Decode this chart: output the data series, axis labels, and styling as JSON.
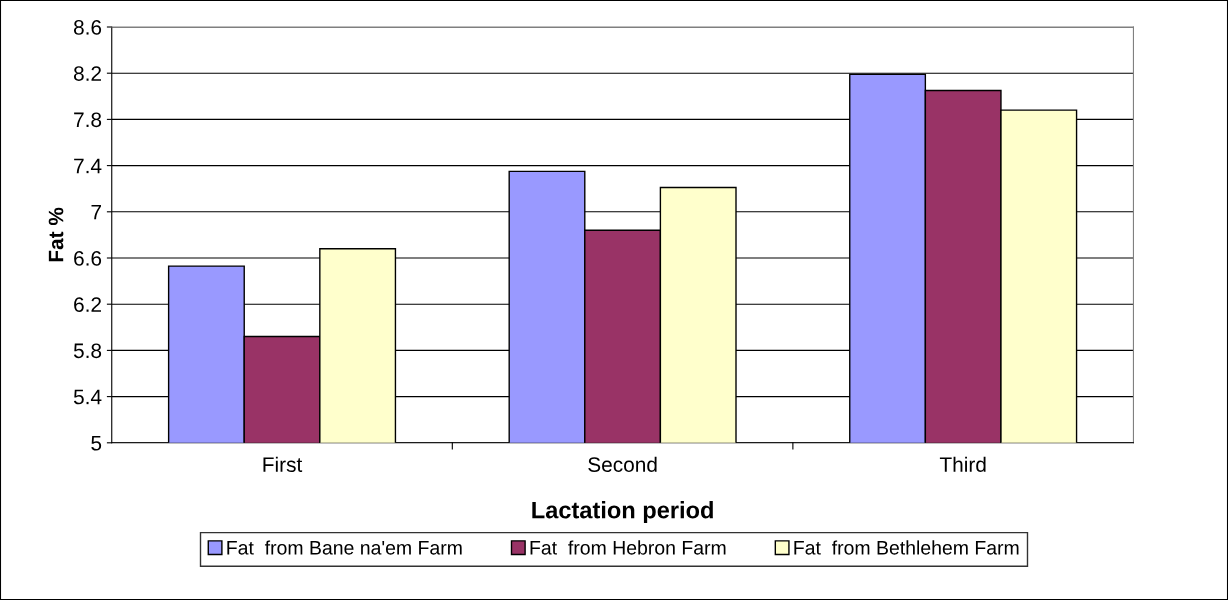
{
  "chart_data": {
    "type": "bar",
    "xlabel": "Lactation period",
    "ylabel": "Fat %",
    "categories": [
      "First",
      "Second",
      "Third"
    ],
    "series": [
      {
        "name": "Fat  from Bane na'em Farm",
        "color": "#9999ff",
        "values": [
          6.53,
          7.35,
          8.19
        ]
      },
      {
        "name": "Fat  from Hebron Farm",
        "color": "#993366",
        "values": [
          5.92,
          6.84,
          8.05
        ]
      },
      {
        "name": "Fat  from Bethlehem Farm",
        "color": "#ffffcc",
        "values": [
          6.68,
          7.21,
          7.88
        ]
      }
    ],
    "ylim": [
      5,
      8.6
    ],
    "yticks": [
      5,
      5.4,
      5.8,
      6.2,
      6.6,
      7,
      7.4,
      7.8,
      8.2,
      8.6
    ],
    "grid": "y",
    "legend": "bottom"
  }
}
